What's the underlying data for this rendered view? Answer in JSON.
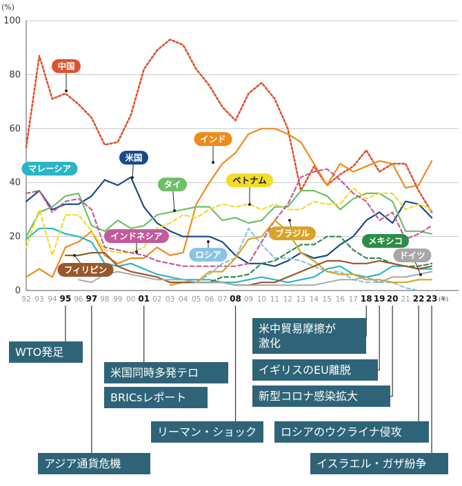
{
  "chart_data": {
    "type": "line",
    "y_unit": "(%)",
    "year_unit": "(年)",
    "ylim": [
      0,
      100
    ],
    "y_ticks": [
      "0",
      "20",
      "40",
      "60",
      "80",
      "100"
    ],
    "x": [
      1992,
      1993,
      1994,
      1995,
      1996,
      1997,
      1998,
      1999,
      2000,
      2001,
      2002,
      2003,
      2004,
      2005,
      2006,
      2007,
      2008,
      2009,
      2010,
      2011,
      2012,
      2013,
      2014,
      2015,
      2016,
      2017,
      2018,
      2019,
      2020,
      2021,
      2022,
      2023
    ],
    "x_tick_labels": [
      "92",
      "93",
      "94",
      "95",
      "96",
      "97",
      "98",
      "99",
      "00",
      "01",
      "02",
      "03",
      "04",
      "05",
      "06",
      "07",
      "08",
      "09",
      "10",
      "11",
      "12",
      "13",
      "14",
      "15",
      "16",
      "17",
      "18",
      "19",
      "20",
      "21",
      "22",
      "23"
    ],
    "x_bold_ticks": [
      "95",
      "97",
      "01",
      "08",
      "18",
      "19",
      "20",
      "22",
      "23"
    ],
    "grid": "horizontal",
    "series": [
      {
        "name": "中国",
        "color": "#e0502c",
        "dash": "dotted",
        "width": 2.6,
        "values": [
          53,
          87,
          71,
          73,
          69,
          64,
          54,
          55,
          65,
          82,
          89,
          93,
          91,
          82,
          76,
          68,
          63,
          73,
          77,
          71,
          60,
          37,
          46,
          39,
          43,
          46,
          52,
          44,
          47,
          47,
          37,
          29
        ]
      },
      {
        "name": "インド",
        "color": "#ee8a1a",
        "dash": "solid",
        "width": 2.2,
        "values": [
          5,
          8,
          5,
          16,
          18,
          22,
          13,
          10,
          12,
          12,
          16,
          13,
          14,
          32,
          40,
          47,
          51,
          58,
          60,
          60,
          58,
          55,
          47,
          39,
          47,
          44,
          46,
          48,
          47,
          38,
          39,
          48
        ]
      },
      {
        "name": "米国",
        "color": "#1a4a8c",
        "dash": "solid",
        "width": 2.2,
        "values": [
          33,
          37,
          30,
          32,
          32,
          35,
          41,
          39,
          42,
          31,
          25,
          22,
          20,
          20,
          20,
          18,
          13,
          10,
          10,
          9,
          11,
          14,
          12,
          13,
          17,
          20,
          26,
          29,
          25,
          33,
          32,
          27
        ]
      },
      {
        "name": "マレーシア",
        "color": "#29b5c5",
        "dash": "solid",
        "width": 2.2,
        "values": [
          19,
          23,
          23,
          21,
          20,
          18,
          10,
          9,
          10,
          8,
          6,
          5,
          4,
          4,
          4,
          3,
          3,
          4,
          5,
          4,
          3,
          4,
          5,
          8,
          9,
          6,
          5,
          6,
          9,
          9,
          8,
          8
        ]
      },
      {
        "name": "タイ",
        "color": "#6fbf68",
        "dash": "solid",
        "width": 2.2,
        "values": [
          20,
          29,
          31,
          35,
          36,
          24,
          22,
          26,
          23,
          24,
          28,
          29,
          30,
          31,
          31,
          26,
          27,
          25,
          26,
          31,
          31,
          37,
          37,
          35,
          30,
          34,
          36,
          36,
          33,
          22,
          22,
          21
        ]
      },
      {
        "name": "ベトナム",
        "color": "#f1dc2a",
        "dash": "dashed",
        "width": 2.2,
        "values": [
          16,
          30,
          13,
          28,
          28,
          22,
          15,
          14,
          14,
          16,
          23,
          25,
          28,
          27,
          30,
          32,
          31,
          32,
          30,
          32,
          30,
          30,
          33,
          32,
          32,
          38,
          34,
          36,
          36,
          30,
          32,
          30
        ]
      },
      {
        "name": "インドネシア",
        "color": "#c35a9c",
        "dash": "dashed",
        "width": 2.2,
        "values": [
          36,
          37,
          29,
          33,
          34,
          30,
          16,
          15,
          14,
          13,
          11,
          10,
          9,
          9,
          9,
          9,
          9,
          10,
          18,
          26,
          32,
          42,
          44,
          45,
          41,
          36,
          33,
          26,
          29,
          19,
          21,
          24
        ]
      },
      {
        "name": "ロシア",
        "color": "#8ac4e5",
        "dash": "dashed",
        "width": 2.2,
        "values": [
          null,
          null,
          null,
          null,
          null,
          null,
          null,
          null,
          null,
          null,
          null,
          2,
          3,
          3,
          6,
          10,
          12,
          23,
          17,
          12,
          12,
          11,
          9,
          7,
          7,
          4,
          3,
          3,
          3,
          1,
          0,
          null
        ]
      },
      {
        "name": "ブラジル",
        "color": "#d9a427",
        "dash": "solid",
        "width": 2.2,
        "values": [
          null,
          null,
          null,
          null,
          null,
          null,
          null,
          null,
          null,
          null,
          null,
          2,
          3,
          3,
          7,
          7,
          12,
          19,
          20,
          26,
          22,
          14,
          11,
          7,
          6,
          6,
          4,
          4,
          3,
          3,
          4,
          4
        ]
      },
      {
        "name": "メキシコ",
        "color": "#2d8c4a",
        "dash": "dashed",
        "width": 2.2,
        "values": [
          null,
          null,
          null,
          null,
          null,
          null,
          null,
          null,
          null,
          null,
          null,
          3,
          3,
          3,
          3,
          5,
          5,
          6,
          10,
          11,
          14,
          17,
          17,
          20,
          20,
          15,
          12,
          12,
          10,
          9,
          9,
          10
        ]
      },
      {
        "name": "フィリピン",
        "color": "#99582a",
        "dash": "solid",
        "width": 2.2,
        "values": [
          null,
          null,
          null,
          13,
          13,
          14,
          14,
          9,
          7,
          6,
          5,
          3,
          3,
          3,
          3,
          3,
          2,
          2,
          3,
          3,
          5,
          7,
          9,
          11,
          11,
          10,
          10,
          11,
          10,
          9,
          8,
          9
        ]
      },
      {
        "name": "ドイツ",
        "color": "#a8a8a8",
        "dash": "solid",
        "width": 2.0,
        "values": [
          null,
          null,
          null,
          null,
          4,
          3,
          6,
          7,
          6,
          5,
          4,
          4,
          4,
          3,
          3,
          3,
          2,
          2,
          2,
          2,
          2,
          2,
          2,
          3,
          4,
          4,
          5,
          3,
          5,
          5,
          6,
          7
        ]
      }
    ],
    "series_labels": [
      {
        "name": "中国",
        "color": "#e0502c",
        "text_color": "#ffffff"
      },
      {
        "name": "インド",
        "color": "#ee8a1a",
        "text_color": "#ffffff"
      },
      {
        "name": "米国",
        "color": "#1a4a8c",
        "text_color": "#ffffff"
      },
      {
        "name": "マレーシア",
        "color": "#29b5c5",
        "text_color": "#ffffff"
      },
      {
        "name": "タイ",
        "color": "#6fbf68",
        "text_color": "#ffffff"
      },
      {
        "name": "ベトナム",
        "color": "#f1dc2a",
        "text_color": "#222222"
      },
      {
        "name": "インドネシア",
        "color": "#c35a9c",
        "text_color": "#ffffff"
      },
      {
        "name": "ロシア",
        "color": "#8ac4e5",
        "text_color": "#ffffff"
      },
      {
        "name": "ブラジル",
        "color": "#d9a427",
        "text_color": "#ffffff"
      },
      {
        "name": "メキシコ",
        "color": "#2d8c4a",
        "text_color": "#ffffff"
      },
      {
        "name": "フィリピン",
        "color": "#99582a",
        "text_color": "#ffffff"
      },
      {
        "name": "ドイツ",
        "color": "#a8a8a8",
        "text_color": "#ffffff"
      }
    ]
  },
  "events": [
    {
      "year": "95",
      "lines": [
        "WTO発足"
      ]
    },
    {
      "year": "97",
      "lines": [
        "アジア通貨危機"
      ]
    },
    {
      "year": "01",
      "lines": [
        "米国同時多発テロ"
      ]
    },
    {
      "year": "01",
      "lines": [
        "BRICsレポート"
      ]
    },
    {
      "year": "08",
      "lines": [
        "リーマン・ショック"
      ]
    },
    {
      "year": "18",
      "lines": [
        "米中貿易摩擦が",
        "激化"
      ]
    },
    {
      "year": "19",
      "lines": [
        "イギリスのEU離脱"
      ]
    },
    {
      "year": "20",
      "lines": [
        "新型コロナ感染拡大"
      ]
    },
    {
      "year": "22",
      "lines": [
        "ロシアのウクライナ侵攻"
      ]
    },
    {
      "year": "23",
      "lines": [
        "イスラエル・ガザ紛争"
      ]
    }
  ]
}
